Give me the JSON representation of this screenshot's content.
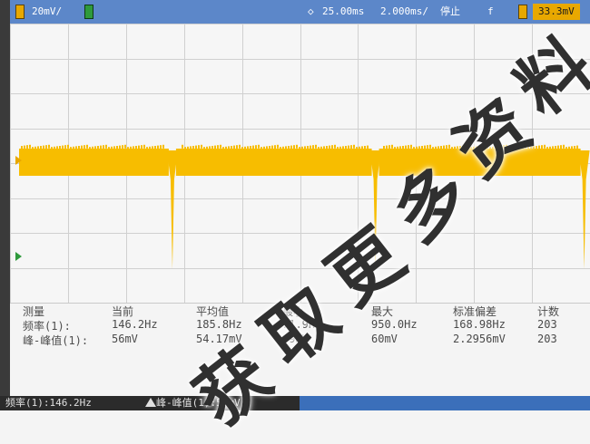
{
  "status_bar": {
    "ch1_scale": "20mV/",
    "trigger_delay": "25.00ms",
    "timebase": "2.000ms/",
    "run_state": "停止",
    "trigger_symbol": "f",
    "trigger_level": "33.3mV"
  },
  "colors": {
    "status_bar": "#5c87c9",
    "channel1": "#f7bd00",
    "channel_marker_green": "#2f9a3c",
    "grid_line": "#d0d0d0",
    "screen_background": "#f6f6f6"
  },
  "waveform": {
    "channel": "1",
    "color": "#f7bd00",
    "dropouts": [
      0.28,
      0.63,
      0.99
    ],
    "level": 0.5
  },
  "measurements": {
    "headers": [
      "测量",
      "当前",
      "平均值",
      "最小",
      "最大",
      "标准偏差",
      "计数"
    ],
    "rows": [
      {
        "label": "频率(1):",
        "current": "146.2Hz",
        "mean": "185.8Hz",
        "min": "71.9Hz",
        "max": "950.0Hz",
        "std": "168.98Hz",
        "count": "203"
      },
      {
        "label": "峰-峰值(1):",
        "current": "56mV",
        "mean": "54.17mV",
        "min": "49mV",
        "max": "60mV",
        "std": "2.2956mV",
        "count": "203"
      }
    ]
  },
  "bottom_bar": {
    "freq_readout": "频率(1):146.2Hz",
    "pp_readout": "峰-峰值(1):56mV"
  },
  "watermark": {
    "text": "获取更多资料"
  }
}
